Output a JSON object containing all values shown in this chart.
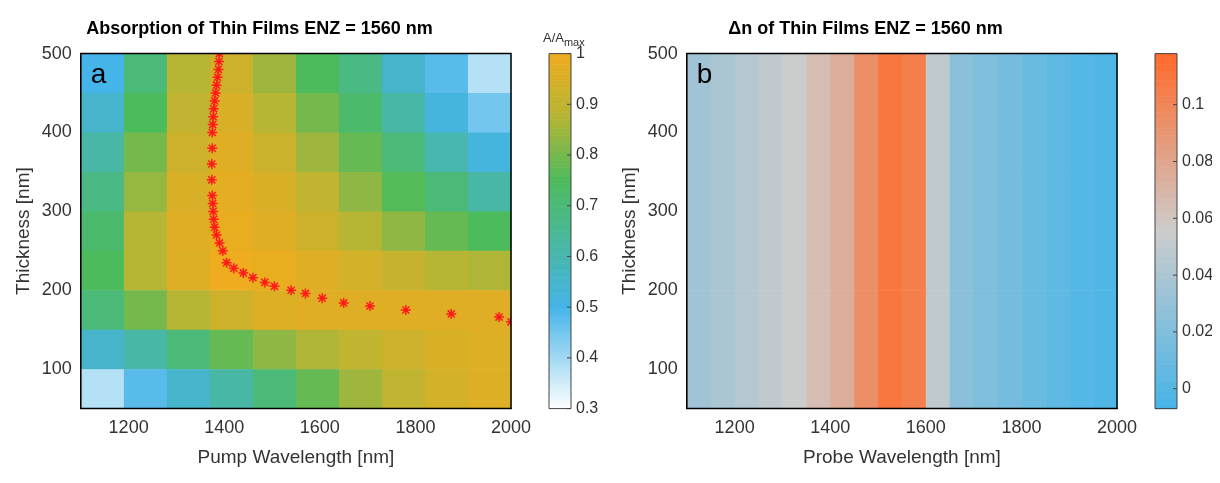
{
  "chart_data": [
    {
      "type": "heatmap",
      "title": "Absorption of Thin Films ENZ = 1560 nm",
      "xlabel": "Pump Wavelength [nm]",
      "ylabel": "Thickness [nm]",
      "clabel": "A/A$_{max}$",
      "annotations": [
        "a"
      ],
      "x": [
        1145,
        1235,
        1325,
        1415,
        1505,
        1595,
        1685,
        1775,
        1865,
        1955
      ],
      "y": [
        475,
        425,
        375,
        325,
        275,
        225,
        175,
        125,
        75
      ],
      "cells": [
        [
          0.5,
          0.7,
          0.88,
          0.93,
          0.85,
          0.75,
          0.68,
          0.55,
          0.48,
          0.38
        ],
        [
          0.55,
          0.75,
          0.9,
          0.95,
          0.88,
          0.8,
          0.72,
          0.62,
          0.52,
          0.45
        ],
        [
          0.62,
          0.8,
          0.93,
          0.97,
          0.92,
          0.85,
          0.78,
          0.7,
          0.6,
          0.52
        ],
        [
          0.68,
          0.84,
          0.95,
          0.98,
          0.95,
          0.9,
          0.83,
          0.76,
          0.7,
          0.62
        ],
        [
          0.72,
          0.88,
          0.97,
          0.99,
          0.97,
          0.93,
          0.88,
          0.83,
          0.78,
          0.75
        ],
        [
          0.75,
          0.88,
          0.96,
          1.0,
          0.99,
          0.97,
          0.94,
          0.91,
          0.88,
          0.87
        ],
        [
          0.7,
          0.8,
          0.88,
          0.93,
          0.96,
          0.97,
          0.97,
          0.97,
          0.97,
          0.97
        ],
        [
          0.55,
          0.62,
          0.7,
          0.78,
          0.83,
          0.87,
          0.9,
          0.93,
          0.95,
          0.96
        ],
        [
          0.38,
          0.48,
          0.55,
          0.62,
          0.7,
          0.78,
          0.85,
          0.9,
          0.94,
          0.96
        ]
      ],
      "series": [
        {
          "type": "scatter",
          "color": "#ff1a1a",
          "marker": "cross",
          "x": [
            1390,
            1389,
            1388,
            1386,
            1384,
            1382,
            1380,
            1378,
            1377,
            1376,
            1375,
            1375,
            1374,
            1374,
            1375,
            1376,
            1377,
            1378,
            1380,
            1384,
            1390,
            1397,
            1405,
            1420,
            1440,
            1460,
            1485,
            1505,
            1540,
            1570,
            1605,
            1650,
            1705,
            1780,
            1875,
            1975,
            2000
          ],
          "values": [
            500,
            490,
            480,
            470,
            460,
            450,
            440,
            430,
            420,
            410,
            400,
            380,
            360,
            340,
            320,
            310,
            300,
            290,
            280,
            270,
            260,
            250,
            235,
            228,
            222,
            216,
            210,
            205,
            200,
            196,
            190,
            184,
            180,
            175,
            170,
            166,
            160
          ]
        }
      ],
      "xlim": [
        1100,
        2000
      ],
      "ylim": [
        50,
        500
      ],
      "xticks": [
        1200,
        1400,
        1600,
        1800,
        2000
      ],
      "yticks": [
        100,
        200,
        300,
        400,
        500
      ],
      "clim": [
        0.3,
        1
      ],
      "cticks": [
        0.3,
        0.4,
        0.5,
        0.6,
        0.7,
        0.8,
        0.9,
        1
      ]
    },
    {
      "type": "heatmap",
      "title": "Δn of Thin Films ENZ = 1560 nm",
      "xlabel": "Probe Wavelength [nm]",
      "ylabel": "Thickness [nm]",
      "annotations": [
        "b"
      ],
      "x": [
        1125,
        1175,
        1225,
        1275,
        1325,
        1375,
        1425,
        1475,
        1525,
        1575,
        1625,
        1675,
        1725,
        1775,
        1825,
        1875,
        1925,
        1975
      ],
      "y": [
        425,
        275,
        125
      ],
      "cells": [
        [
          0.035,
          0.04,
          0.045,
          0.05,
          0.055,
          0.065,
          0.075,
          0.095,
          0.11,
          0.105,
          0.05,
          0.025,
          0.02,
          0.015,
          0.01,
          0.005,
          0.0,
          -0.002
        ],
        [
          0.035,
          0.04,
          0.045,
          0.05,
          0.055,
          0.065,
          0.075,
          0.095,
          0.11,
          0.105,
          0.05,
          0.025,
          0.02,
          0.015,
          0.01,
          0.005,
          0.0,
          -0.002
        ],
        [
          0.035,
          0.04,
          0.045,
          0.05,
          0.055,
          0.065,
          0.075,
          0.095,
          0.11,
          0.105,
          0.05,
          0.025,
          0.02,
          0.015,
          0.01,
          0.005,
          0.0,
          -0.002
        ]
      ],
      "xlim": [
        1100,
        2000
      ],
      "ylim": [
        50,
        500
      ],
      "xticks": [
        1200,
        1400,
        1600,
        1800,
        2000
      ],
      "yticks": [
        100,
        200,
        300,
        400,
        500
      ],
      "clim": [
        -0.007,
        0.118
      ],
      "cticks": [
        0,
        0.02,
        0.04,
        0.06,
        0.08,
        0.1
      ]
    }
  ]
}
